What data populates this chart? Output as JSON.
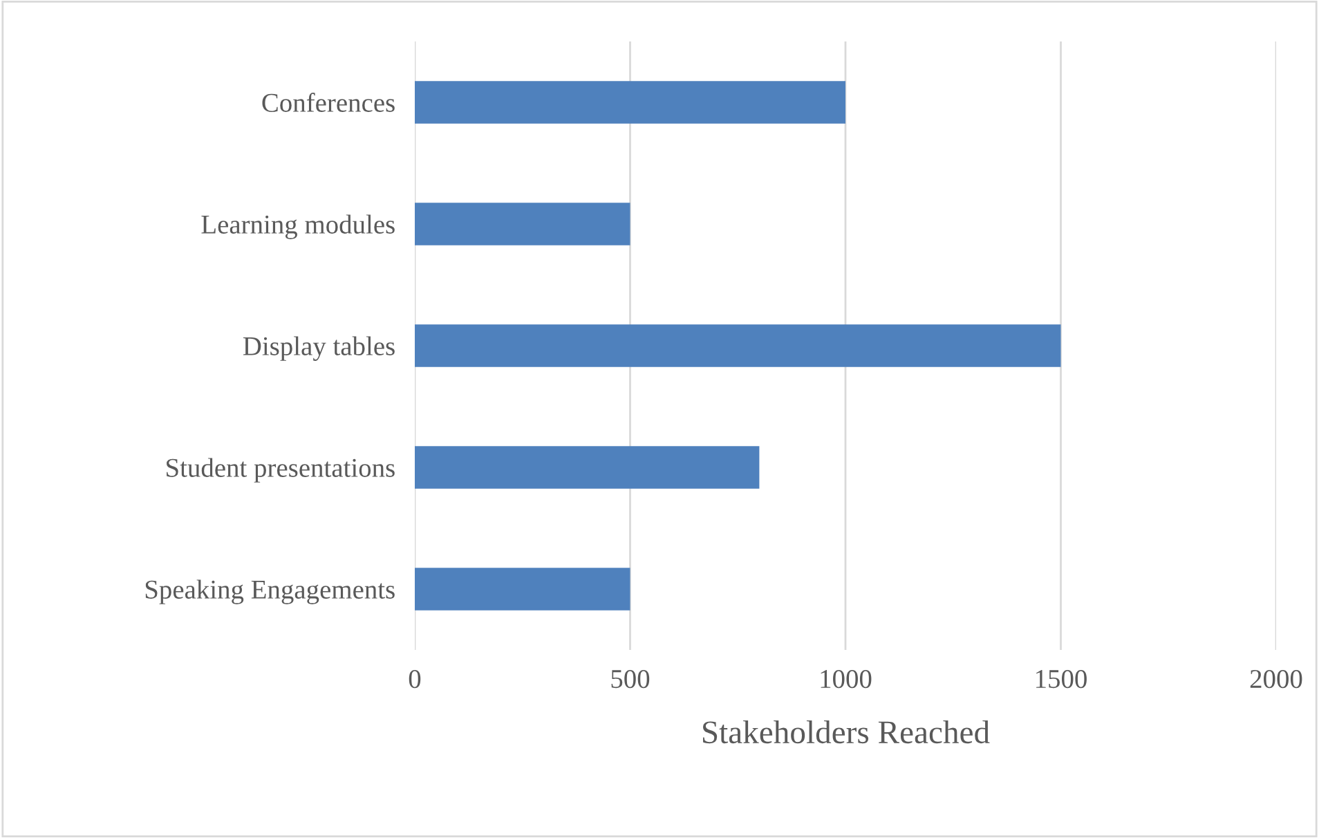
{
  "chart_data": {
    "type": "bar",
    "orientation": "horizontal",
    "xlabel": "Stakeholders Reached",
    "categories": [
      "Conferences",
      "Learning modules",
      "Display tables",
      "Student presentations",
      "Speaking Engagements"
    ],
    "values": [
      1000,
      500,
      1500,
      800,
      500
    ],
    "color": "#4f81bd",
    "xlim": [
      0,
      2000
    ],
    "xticks": [
      0,
      500,
      1000,
      1500,
      2000
    ],
    "grid": "x"
  }
}
